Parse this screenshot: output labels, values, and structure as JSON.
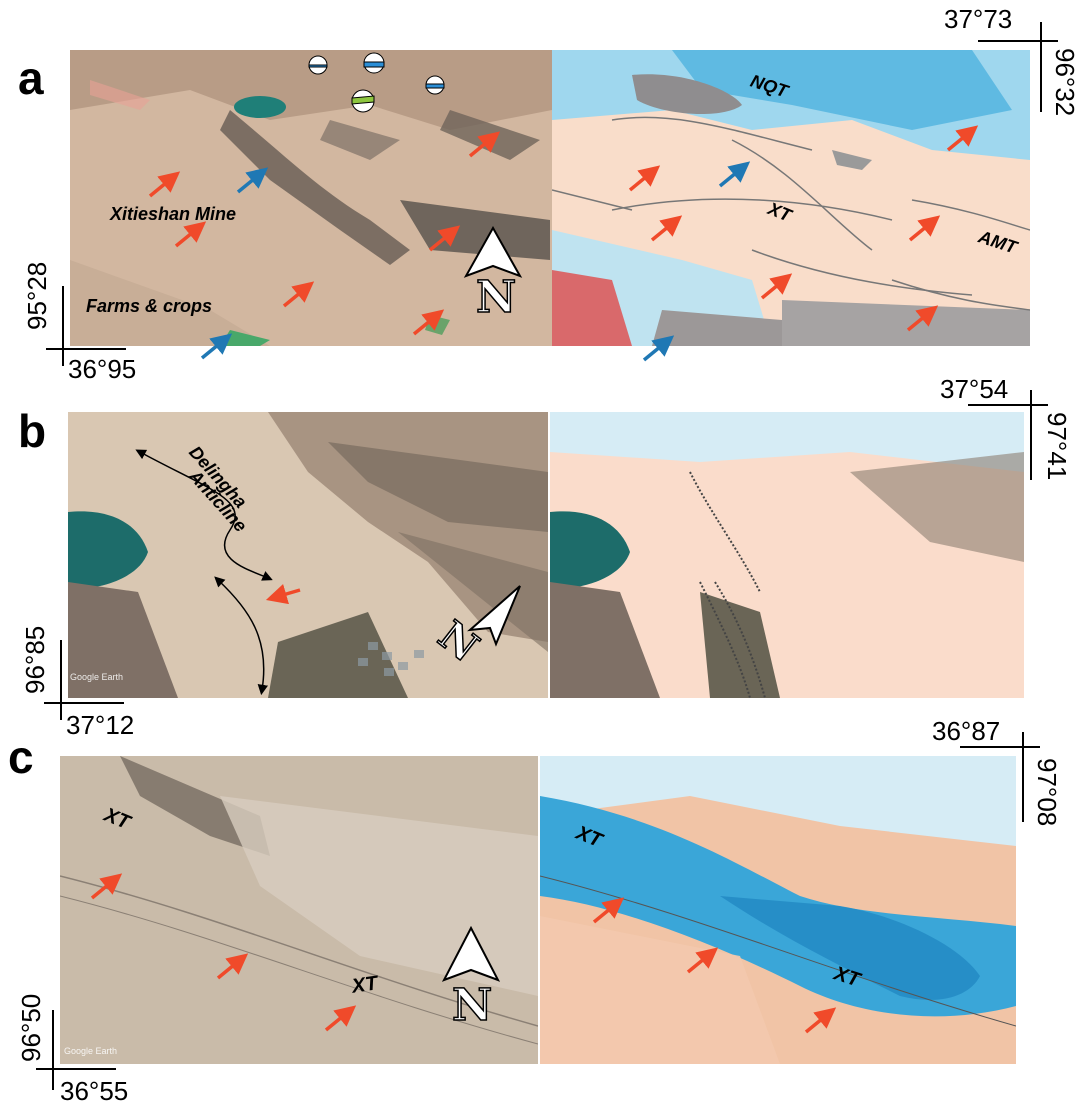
{
  "panels": {
    "a": {
      "letter": "a",
      "coord_top": "37°73",
      "coord_right": "96°32",
      "coord_left": "95°28",
      "coord_bottom": "36°95",
      "labels": {
        "mine": "Xitieshan Mine",
        "farms": "Farms & crops",
        "nqt": "NQT",
        "xt": "XT",
        "amt": "AMT"
      },
      "north": "N"
    },
    "b": {
      "letter": "b",
      "coord_top": "37°54",
      "coord_right": "97°41",
      "coord_left": "96°85",
      "coord_bottom": "37°12",
      "labels": {
        "anticline_line1": "Delingha",
        "anticline_line2": "Anticline",
        "google": "Google Earth"
      },
      "north": "N"
    },
    "c": {
      "letter": "c",
      "coord_top": "36°87",
      "coord_right": "97°08",
      "coord_left": "96°50",
      "coord_bottom": "36°55",
      "labels": {
        "xt_left_1": "XT",
        "xt_left_2": "XT",
        "xt_right_1": "XT",
        "xt_right_2": "XT",
        "google": "Google Earth"
      },
      "north": "N"
    }
  },
  "colors": {
    "red_arrow": "#f04a2a",
    "blue_arrow": "#1f78b4",
    "desert": "#cdb59e",
    "uplift_blue": "#3aa6d8",
    "subsidence_red": "#f2b08c"
  }
}
